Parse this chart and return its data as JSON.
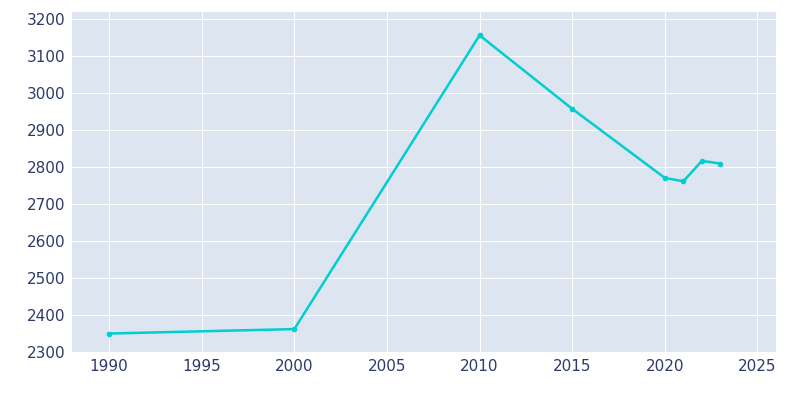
{
  "years": [
    1990,
    2000,
    2010,
    2015,
    2020,
    2021,
    2022,
    2023
  ],
  "population": [
    2350,
    2362,
    3157,
    2958,
    2771,
    2762,
    2817,
    2810
  ],
  "line_color": "#00CED1",
  "ax_bg_color": "#dce5f0",
  "fig_bg_color": "#ffffff",
  "grid_color": "#ffffff",
  "tick_label_color": "#2d3a6b",
  "xlim": [
    1988,
    2026
  ],
  "ylim": [
    2300,
    3220
  ],
  "xticks": [
    1990,
    1995,
    2000,
    2005,
    2010,
    2015,
    2020,
    2025
  ],
  "yticks": [
    2300,
    2400,
    2500,
    2600,
    2700,
    2800,
    2900,
    3000,
    3100,
    3200
  ],
  "linewidth": 1.8,
  "marker": "o",
  "markersize": 3
}
